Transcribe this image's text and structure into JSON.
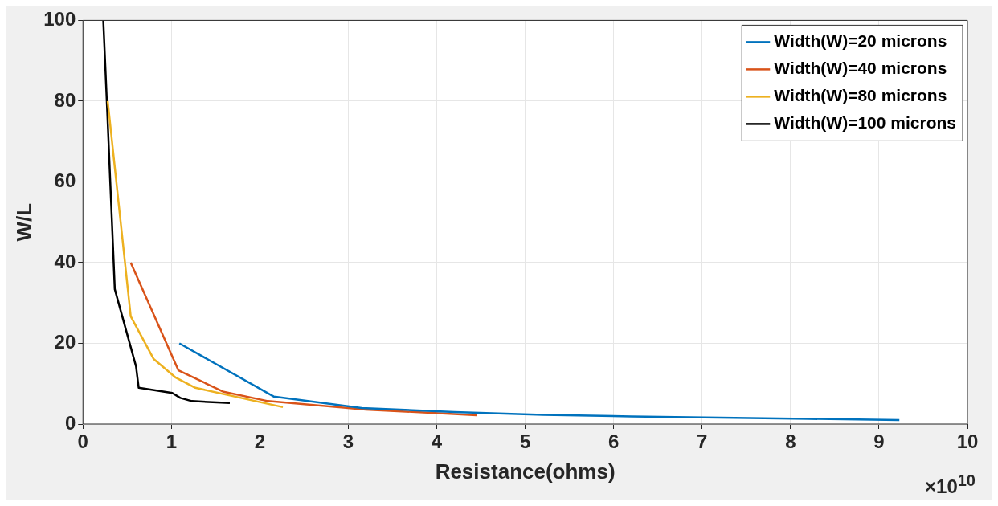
{
  "chart_data": {
    "type": "line",
    "xlabel": "Resistance(ohms)",
    "ylabel": "W/L",
    "annotations": [
      "×10$^{10}$"
    ],
    "xlim": [
      0,
      10
    ],
    "xticks": [
      0,
      1,
      2,
      3,
      4,
      5,
      6,
      7,
      8,
      9,
      10
    ],
    "ylim": [
      0,
      100
    ],
    "yticks": [
      0,
      20,
      40,
      60,
      80,
      100
    ],
    "grid": true,
    "legend": "top right",
    "marker": "none",
    "line_style": "solid",
    "series": [
      {
        "name": "Width(W)=20 microns",
        "color": "#0072bd",
        "x": [
          1.09,
          2.16,
          3.15,
          4.2,
          5.2,
          6.2,
          7.2,
          8.2,
          9.23
        ],
        "values": [
          20,
          6.8,
          4,
          3,
          2.3,
          1.9,
          1.6,
          1.3,
          1
        ]
      },
      {
        "name": "Width(W)=40 microns",
        "color": "#d95319",
        "x": [
          0.54,
          1.08,
          1.59,
          2.09,
          3.2,
          4.45
        ],
        "values": [
          40,
          13.3,
          8,
          5.7,
          3.6,
          2.2
        ]
      },
      {
        "name": "Width(W)=80 microns",
        "color": "#edb120",
        "x": [
          0.28,
          0.54,
          0.8,
          1.05,
          1.27,
          2.26
        ],
        "values": [
          80,
          26.7,
          16.1,
          11.5,
          9,
          4.2
        ]
      },
      {
        "name": "Width(W)=100 microns",
        "color": "#000000",
        "x": [
          0.23,
          0.27,
          0.36,
          0.6,
          0.63,
          1.01,
          1.1,
          1.23,
          1.66
        ],
        "values": [
          100,
          80,
          33.4,
          14.3,
          9,
          7.7,
          6.5,
          5.7,
          5.2
        ]
      }
    ]
  }
}
